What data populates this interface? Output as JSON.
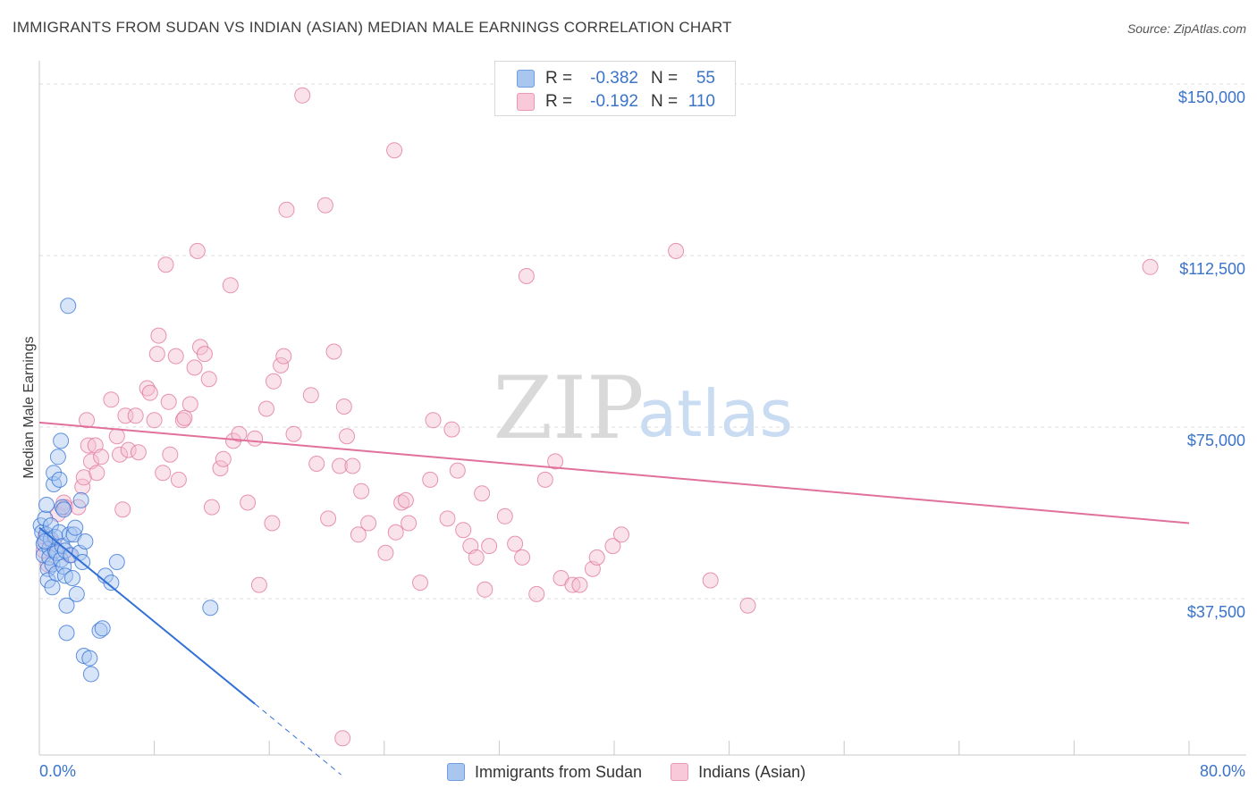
{
  "title": "IMMIGRANTS FROM SUDAN VS INDIAN (ASIAN) MEDIAN MALE EARNINGS CORRELATION CHART",
  "source": "Source: ZipAtlas.com",
  "watermark": {
    "zip": "ZIP",
    "atlas": "atlas"
  },
  "stats": [
    {
      "r_label": "R =",
      "r_value": "-0.382",
      "n_label": "N =",
      "n_value": "55"
    },
    {
      "r_label": "R =",
      "r_value": "-0.192",
      "n_label": "N =",
      "n_value": "110"
    }
  ],
  "legend": [
    "Immigrants from Sudan",
    "Indians (Asian)"
  ],
  "chart_data": {
    "type": "scatter",
    "ylabel": "Median Male Earnings",
    "xlim": [
      0,
      80
    ],
    "ylim": [
      0,
      152000
    ],
    "x_tick_labels": [
      "0.0%",
      "80.0%"
    ],
    "y_ticks": [
      {
        "value": 37500,
        "label": "$37,500"
      },
      {
        "value": 75000,
        "label": "$75,000"
      },
      {
        "value": 112500,
        "label": "$112,500"
      },
      {
        "value": 150000,
        "label": "$150,000"
      }
    ],
    "colors": {
      "blue": "#2f6fd6",
      "pink": "#e0719b",
      "tick_label": "#3a73c9"
    },
    "series": [
      {
        "name": "Immigrants from Sudan",
        "color": "#2f6fd6",
        "fill": "#a9c6ef",
        "trend": {
          "x0": 0.0,
          "y0": 53000,
          "x1": 15.0,
          "y1": 14500,
          "dash_to_x": 21.0,
          "dash_to_y": -1000
        },
        "points": [
          [
            0.1,
            53500
          ],
          [
            0.2,
            52000
          ],
          [
            0.3,
            49500
          ],
          [
            0.3,
            47000
          ],
          [
            0.4,
            55000
          ],
          [
            0.5,
            58000
          ],
          [
            0.5,
            51500
          ],
          [
            0.6,
            44000
          ],
          [
            0.6,
            41500
          ],
          [
            0.7,
            48500
          ],
          [
            0.7,
            46500
          ],
          [
            0.8,
            50500
          ],
          [
            0.8,
            53500
          ],
          [
            0.9,
            45000
          ],
          [
            0.9,
            40000
          ],
          [
            1.0,
            62500
          ],
          [
            1.0,
            65000
          ],
          [
            1.1,
            48000
          ],
          [
            1.1,
            51000
          ],
          [
            1.2,
            43000
          ],
          [
            1.2,
            47500
          ],
          [
            1.3,
            68500
          ],
          [
            1.4,
            52000
          ],
          [
            1.4,
            63500
          ],
          [
            1.5,
            72000
          ],
          [
            1.5,
            46000
          ],
          [
            1.6,
            57500
          ],
          [
            1.6,
            49000
          ],
          [
            1.7,
            44500
          ],
          [
            1.7,
            57000
          ],
          [
            1.8,
            48000
          ],
          [
            1.8,
            42500
          ],
          [
            1.9,
            36000
          ],
          [
            1.9,
            30000
          ],
          [
            2.0,
            101500
          ],
          [
            2.1,
            51500
          ],
          [
            2.2,
            47000
          ],
          [
            2.3,
            42000
          ],
          [
            2.4,
            51500
          ],
          [
            2.5,
            53000
          ],
          [
            2.6,
            38500
          ],
          [
            2.8,
            47500
          ],
          [
            2.9,
            59000
          ],
          [
            3.0,
            45500
          ],
          [
            3.1,
            25000
          ],
          [
            3.2,
            50000
          ],
          [
            3.5,
            24500
          ],
          [
            3.6,
            21000
          ],
          [
            4.2,
            30500
          ],
          [
            4.4,
            31000
          ],
          [
            4.6,
            42500
          ],
          [
            5.0,
            41000
          ],
          [
            5.4,
            45500
          ],
          [
            11.9,
            35500
          ],
          [
            0.4,
            50000
          ]
        ]
      },
      {
        "name": "Indians (Asian)",
        "color": "#e0719b",
        "fill": "#f5bfd1",
        "trend": {
          "x0": 0.0,
          "y0": 76000,
          "x1": 80.0,
          "y1": 54000
        },
        "points": [
          [
            0.3,
            48000
          ],
          [
            0.4,
            51000
          ],
          [
            0.6,
            45000
          ],
          [
            0.8,
            50000
          ],
          [
            1.0,
            49500
          ],
          [
            1.3,
            56000
          ],
          [
            1.7,
            58500
          ],
          [
            1.8,
            57500
          ],
          [
            2.1,
            47000
          ],
          [
            2.7,
            57500
          ],
          [
            3.0,
            62000
          ],
          [
            3.1,
            64000
          ],
          [
            3.3,
            76500
          ],
          [
            3.4,
            71000
          ],
          [
            3.6,
            67500
          ],
          [
            3.9,
            71000
          ],
          [
            4.0,
            65000
          ],
          [
            4.3,
            68500
          ],
          [
            5.0,
            81000
          ],
          [
            5.4,
            73000
          ],
          [
            5.6,
            69000
          ],
          [
            5.8,
            57000
          ],
          [
            6.0,
            77500
          ],
          [
            6.2,
            70000
          ],
          [
            6.7,
            77500
          ],
          [
            6.9,
            69500
          ],
          [
            7.5,
            83500
          ],
          [
            7.7,
            82500
          ],
          [
            8.0,
            76500
          ],
          [
            8.2,
            91000
          ],
          [
            8.3,
            95000
          ],
          [
            8.6,
            65000
          ],
          [
            8.8,
            110500
          ],
          [
            9.0,
            80500
          ],
          [
            9.1,
            69000
          ],
          [
            9.5,
            90500
          ],
          [
            9.7,
            63500
          ],
          [
            10.0,
            76500
          ],
          [
            10.1,
            77000
          ],
          [
            10.5,
            80000
          ],
          [
            10.8,
            88000
          ],
          [
            11.0,
            113500
          ],
          [
            11.2,
            92500
          ],
          [
            11.5,
            91000
          ],
          [
            11.8,
            85500
          ],
          [
            12.0,
            57500
          ],
          [
            12.6,
            66000
          ],
          [
            12.8,
            68000
          ],
          [
            13.3,
            106000
          ],
          [
            13.5,
            72000
          ],
          [
            13.9,
            73500
          ],
          [
            14.5,
            58500
          ],
          [
            15.0,
            72500
          ],
          [
            15.3,
            40500
          ],
          [
            15.8,
            79000
          ],
          [
            16.2,
            54000
          ],
          [
            16.3,
            85000
          ],
          [
            16.8,
            88500
          ],
          [
            17.0,
            90500
          ],
          [
            17.2,
            122500
          ],
          [
            17.7,
            73500
          ],
          [
            18.3,
            147500
          ],
          [
            18.9,
            82000
          ],
          [
            19.3,
            67000
          ],
          [
            19.9,
            123500
          ],
          [
            20.1,
            55000
          ],
          [
            20.5,
            91500
          ],
          [
            20.9,
            66500
          ],
          [
            21.2,
            79500
          ],
          [
            21.4,
            73000
          ],
          [
            21.8,
            66500
          ],
          [
            22.2,
            51500
          ],
          [
            22.4,
            61000
          ],
          [
            22.9,
            54000
          ],
          [
            24.1,
            47500
          ],
          [
            24.7,
            135500
          ],
          [
            24.8,
            52000
          ],
          [
            25.2,
            58500
          ],
          [
            25.5,
            59000
          ],
          [
            25.7,
            54000
          ],
          [
            26.5,
            41000
          ],
          [
            27.2,
            63500
          ],
          [
            27.4,
            76500
          ],
          [
            28.4,
            55000
          ],
          [
            28.7,
            74500
          ],
          [
            29.1,
            65500
          ],
          [
            29.5,
            52500
          ],
          [
            30.0,
            49000
          ],
          [
            30.4,
            46500
          ],
          [
            30.8,
            60500
          ],
          [
            31.0,
            39500
          ],
          [
            31.3,
            49000
          ],
          [
            32.4,
            55500
          ],
          [
            33.1,
            49500
          ],
          [
            33.6,
            46500
          ],
          [
            33.9,
            108000
          ],
          [
            34.6,
            38500
          ],
          [
            35.2,
            63500
          ],
          [
            35.9,
            67500
          ],
          [
            36.3,
            42000
          ],
          [
            37.1,
            40500
          ],
          [
            37.6,
            40500
          ],
          [
            38.5,
            44000
          ],
          [
            38.8,
            46500
          ],
          [
            39.9,
            49000
          ],
          [
            40.5,
            51500
          ],
          [
            44.3,
            113500
          ],
          [
            46.7,
            41500
          ],
          [
            49.3,
            36000
          ],
          [
            77.3,
            110000
          ],
          [
            21.1,
            7000
          ]
        ]
      }
    ]
  }
}
